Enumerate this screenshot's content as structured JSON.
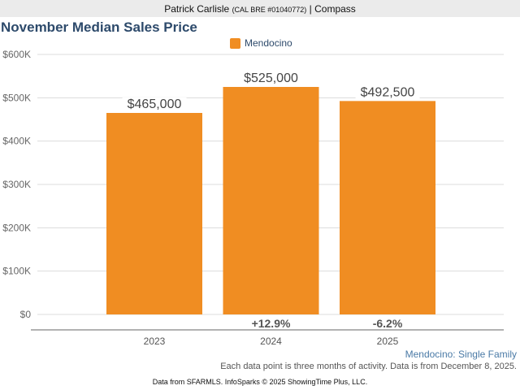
{
  "header": {
    "agent_name": "Patrick Carlisle",
    "license": "(CAL BRE #01040772)",
    "separator": "|",
    "brokerage": "Compass"
  },
  "chart_data": {
    "type": "bar",
    "title": "November Median Sales Price",
    "legend": [
      {
        "name": "Mendocino",
        "color": "#f08d22"
      }
    ],
    "legend_position": "top-center",
    "categories": [
      "2023",
      "2024",
      "2025"
    ],
    "series": [
      {
        "name": "Mendocino",
        "values": [
          465000,
          525000,
          492500
        ]
      }
    ],
    "data_labels": [
      "$465,000",
      "$525,000",
      "$492,500"
    ],
    "change_labels": [
      "",
      "+12.9%",
      "-6.2%"
    ],
    "yticks": [
      0,
      100000,
      200000,
      300000,
      400000,
      500000,
      600000
    ],
    "ytick_labels": [
      "$0",
      "$100K",
      "$200K",
      "$300K",
      "$400K",
      "$500K",
      "$600K"
    ],
    "ylim": [
      0,
      600000
    ],
    "xlabel": "",
    "ylabel": "",
    "grid": true,
    "bar_color": "#f08d22"
  },
  "footer": {
    "series_note": "Mendocino: Single Family",
    "activity_note": "Each data point is three months of activity. Data is from December 8, 2025.",
    "source": "Data from SFARMLS. InfoSparks © 2025 ShowingTime Plus, LLC."
  }
}
